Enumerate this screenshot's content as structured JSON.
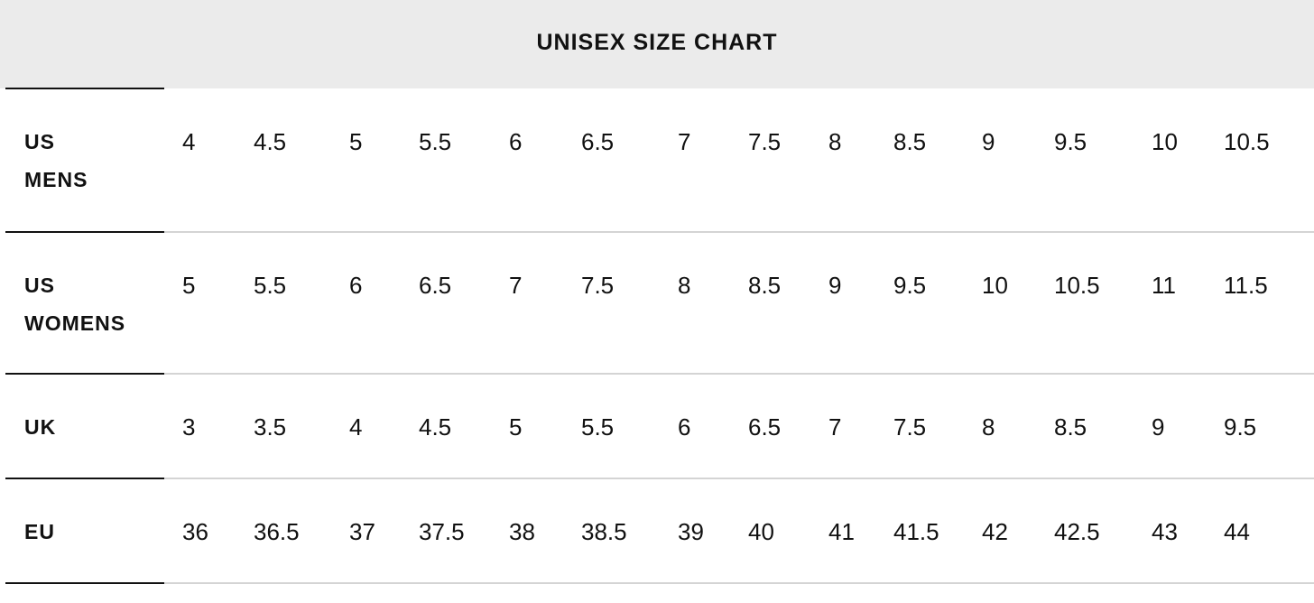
{
  "title": "UNISEX SIZE CHART",
  "rows": [
    {
      "label_lines": [
        "US",
        "MENS"
      ],
      "values": [
        "4",
        "4.5",
        "5",
        "5.5",
        "6",
        "6.5",
        "7",
        "7.5",
        "8",
        "8.5",
        "9",
        "9.5",
        "10",
        "10.5"
      ]
    },
    {
      "label_lines": [
        "US",
        "WOMENS"
      ],
      "values": [
        "5",
        "5.5",
        "6",
        "6.5",
        "7",
        "7.5",
        "8",
        "8.5",
        "9",
        "9.5",
        "10",
        "10.5",
        "11",
        "11.5"
      ]
    },
    {
      "label_lines": [
        "UK"
      ],
      "values": [
        "3",
        "3.5",
        "4",
        "4.5",
        "5",
        "5.5",
        "6",
        "6.5",
        "7",
        "7.5",
        "8",
        "8.5",
        "9",
        "9.5"
      ]
    },
    {
      "label_lines": [
        "EU"
      ],
      "values": [
        "36",
        "36.5",
        "37",
        "37.5",
        "38",
        "38.5",
        "39",
        "40",
        "41",
        "41.5",
        "42",
        "42.5",
        "43",
        "44"
      ]
    }
  ],
  "colors": {
    "header_bg": "#ebebeb",
    "rule_dark": "#111111",
    "rule_light": "#d4d4d4"
  }
}
